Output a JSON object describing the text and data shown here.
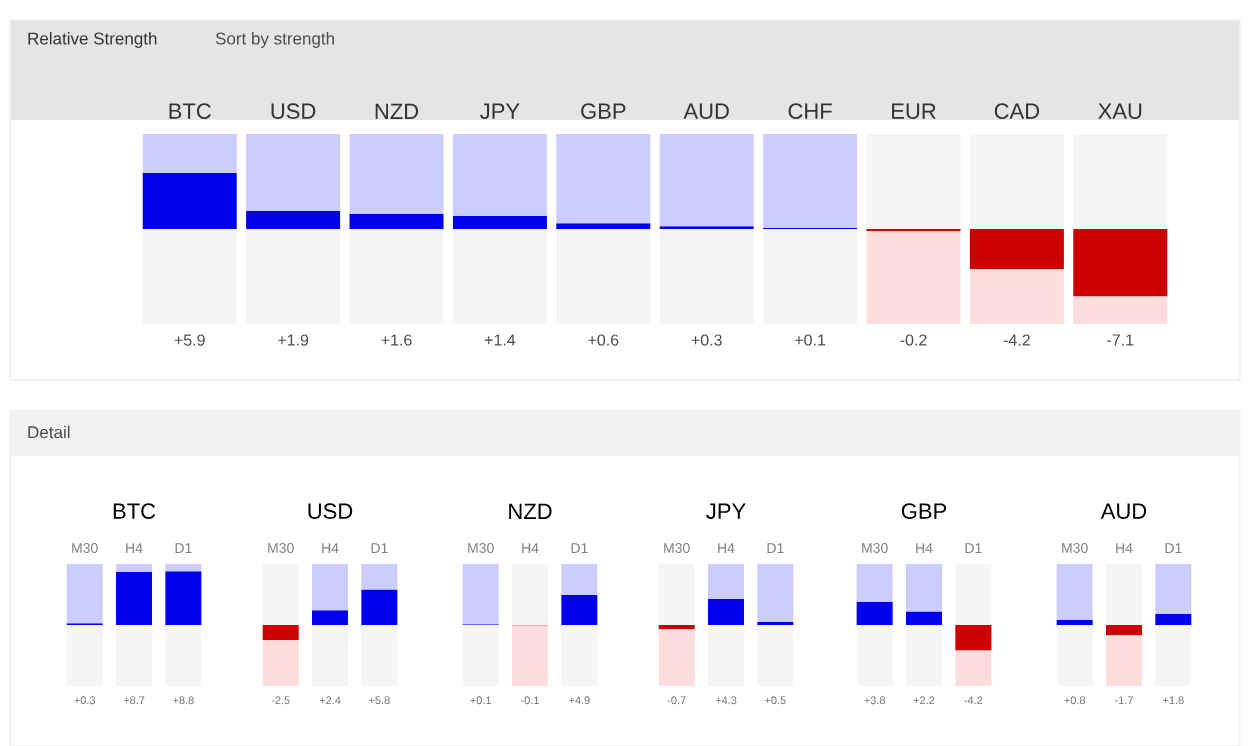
{
  "chart_data": [
    {
      "type": "bar",
      "title": "Relative Strength",
      "annotations": [
        "Sort by strength"
      ],
      "categories": [
        "BTC",
        "USD",
        "NZD",
        "JPY",
        "GBP",
        "AUD",
        "CHF",
        "EUR",
        "CAD",
        "XAU"
      ],
      "stacked": true,
      "ylim": [
        -10,
        10
      ],
      "tick_labels": "x",
      "series": [
        {
          "values": [
            5.9,
            1.9,
            1.6,
            1.4,
            0.6,
            0.3,
            0.1,
            -0.2,
            -4.2,
            -7.1
          ],
          "colors": [
            "#0000ee",
            "#0000ee",
            "#0000ee",
            "#0000ee",
            "#0000ee",
            "#0000ee",
            "#0000ee",
            "#cc0000",
            "#cc0000",
            "#cc0000"
          ],
          "value_labels": [
            "+5.9",
            "+1.9",
            "+1.6",
            "+1.4",
            "+0.6",
            "+0.3",
            "+0.1",
            "-0.2",
            "-4.2",
            "-7.1"
          ]
        },
        {
          "values": [
            4.1,
            8.1,
            8.4,
            8.6,
            9.4,
            9.7,
            9.9,
            -9.8,
            -5.8,
            -2.9
          ],
          "colors": [
            "#ccccff",
            "#ccccff",
            "#ccccff",
            "#ccccff",
            "#ccccff",
            "#ccccff",
            "#ccccff",
            "#ffdddd",
            "#ffdddd",
            "#ffdddd"
          ]
        },
        {
          "values": [
            -10,
            -10,
            -10,
            -10,
            -10,
            -10,
            -10,
            10,
            10,
            10
          ],
          "color": "#f5f5f5"
        }
      ]
    },
    {
      "type": "bar",
      "title": "BTC",
      "annotations": [
        "Detail"
      ],
      "categories": [
        "M30",
        "H4",
        "D1"
      ],
      "stacked": true,
      "ylim": [
        -10,
        10
      ],
      "tick_labels": "x",
      "series": [
        {
          "values": [
            0.3,
            8.7,
            8.8
          ],
          "colors": [
            "#0000ee",
            "#0000ee",
            "#0000ee"
          ],
          "value_labels": [
            "+0.3",
            "+8.7",
            "+8.8"
          ]
        },
        {
          "values": [
            9.7,
            1.3,
            1.2
          ],
          "colors": [
            "#ccccff",
            "#ccccff",
            "#ccccff"
          ]
        },
        {
          "values": [
            -10,
            -10,
            -10
          ],
          "color": "#f5f5f5"
        }
      ]
    },
    {
      "type": "bar",
      "title": "USD",
      "categories": [
        "M30",
        "H4",
        "D1"
      ],
      "stacked": true,
      "ylim": [
        -10,
        10
      ],
      "tick_labels": "x",
      "series": [
        {
          "values": [
            -2.5,
            2.4,
            5.8
          ],
          "colors": [
            "#cc0000",
            "#0000ee",
            "#0000ee"
          ],
          "value_labels": [
            "-2.5",
            "+2.4",
            "+5.8"
          ]
        },
        {
          "values": [
            -7.5,
            7.6,
            4.2
          ],
          "colors": [
            "#ffdddd",
            "#ccccff",
            "#ccccff"
          ]
        },
        {
          "values": [
            10,
            -10,
            -10
          ],
          "color": "#f5f5f5"
        }
      ]
    },
    {
      "type": "bar",
      "title": "NZD",
      "categories": [
        "M30",
        "H4",
        "D1"
      ],
      "stacked": true,
      "ylim": [
        -10,
        10
      ],
      "tick_labels": "x",
      "series": [
        {
          "values": [
            0.1,
            -0.1,
            4.9
          ],
          "colors": [
            "#0000ee",
            "#cc0000",
            "#0000ee"
          ],
          "value_labels": [
            "+0.1",
            "-0.1",
            "+4.9"
          ]
        },
        {
          "values": [
            9.9,
            -9.9,
            5.1
          ],
          "colors": [
            "#ccccff",
            "#ffdddd",
            "#ccccff"
          ]
        },
        {
          "values": [
            -10,
            10,
            -10
          ],
          "color": "#f5f5f5"
        }
      ]
    },
    {
      "type": "bar",
      "title": "JPY",
      "categories": [
        "M30",
        "H4",
        "D1"
      ],
      "stacked": true,
      "ylim": [
        -10,
        10
      ],
      "tick_labels": "x",
      "series": [
        {
          "values": [
            -0.7,
            4.3,
            0.5
          ],
          "colors": [
            "#cc0000",
            "#0000ee",
            "#0000ee"
          ],
          "value_labels": [
            "-0.7",
            "+4.3",
            "+0.5"
          ]
        },
        {
          "values": [
            -9.3,
            5.7,
            9.5
          ],
          "colors": [
            "#ffdddd",
            "#ccccff",
            "#ccccff"
          ]
        },
        {
          "values": [
            10,
            -10,
            -10
          ],
          "color": "#f5f5f5"
        }
      ]
    },
    {
      "type": "bar",
      "title": "GBP",
      "categories": [
        "M30",
        "H4",
        "D1"
      ],
      "stacked": true,
      "ylim": [
        -10,
        10
      ],
      "tick_labels": "x",
      "series": [
        {
          "values": [
            3.8,
            2.2,
            -4.2
          ],
          "colors": [
            "#0000ee",
            "#0000ee",
            "#cc0000"
          ],
          "value_labels": [
            "+3.8",
            "+2.2",
            "-4.2"
          ]
        },
        {
          "values": [
            6.2,
            7.8,
            -5.8
          ],
          "colors": [
            "#ccccff",
            "#ccccff",
            "#ffdddd"
          ]
        },
        {
          "values": [
            -10,
            -10,
            10
          ],
          "color": "#f5f5f5"
        }
      ]
    },
    {
      "type": "bar",
      "title": "AUD",
      "categories": [
        "M30",
        "H4",
        "D1"
      ],
      "stacked": true,
      "ylim": [
        -10,
        10
      ],
      "tick_labels": "x",
      "series": [
        {
          "values": [
            0.8,
            -1.7,
            1.8
          ],
          "colors": [
            "#0000ee",
            "#cc0000",
            "#0000ee"
          ],
          "value_labels": [
            "+0.8",
            "-1.7",
            "+1.8"
          ]
        },
        {
          "values": [
            9.2,
            -8.3,
            8.2
          ],
          "colors": [
            "#ccccff",
            "#ffdddd",
            "#ccccff"
          ]
        },
        {
          "values": [
            -10,
            10,
            -10
          ],
          "color": "#f5f5f5"
        }
      ]
    }
  ]
}
